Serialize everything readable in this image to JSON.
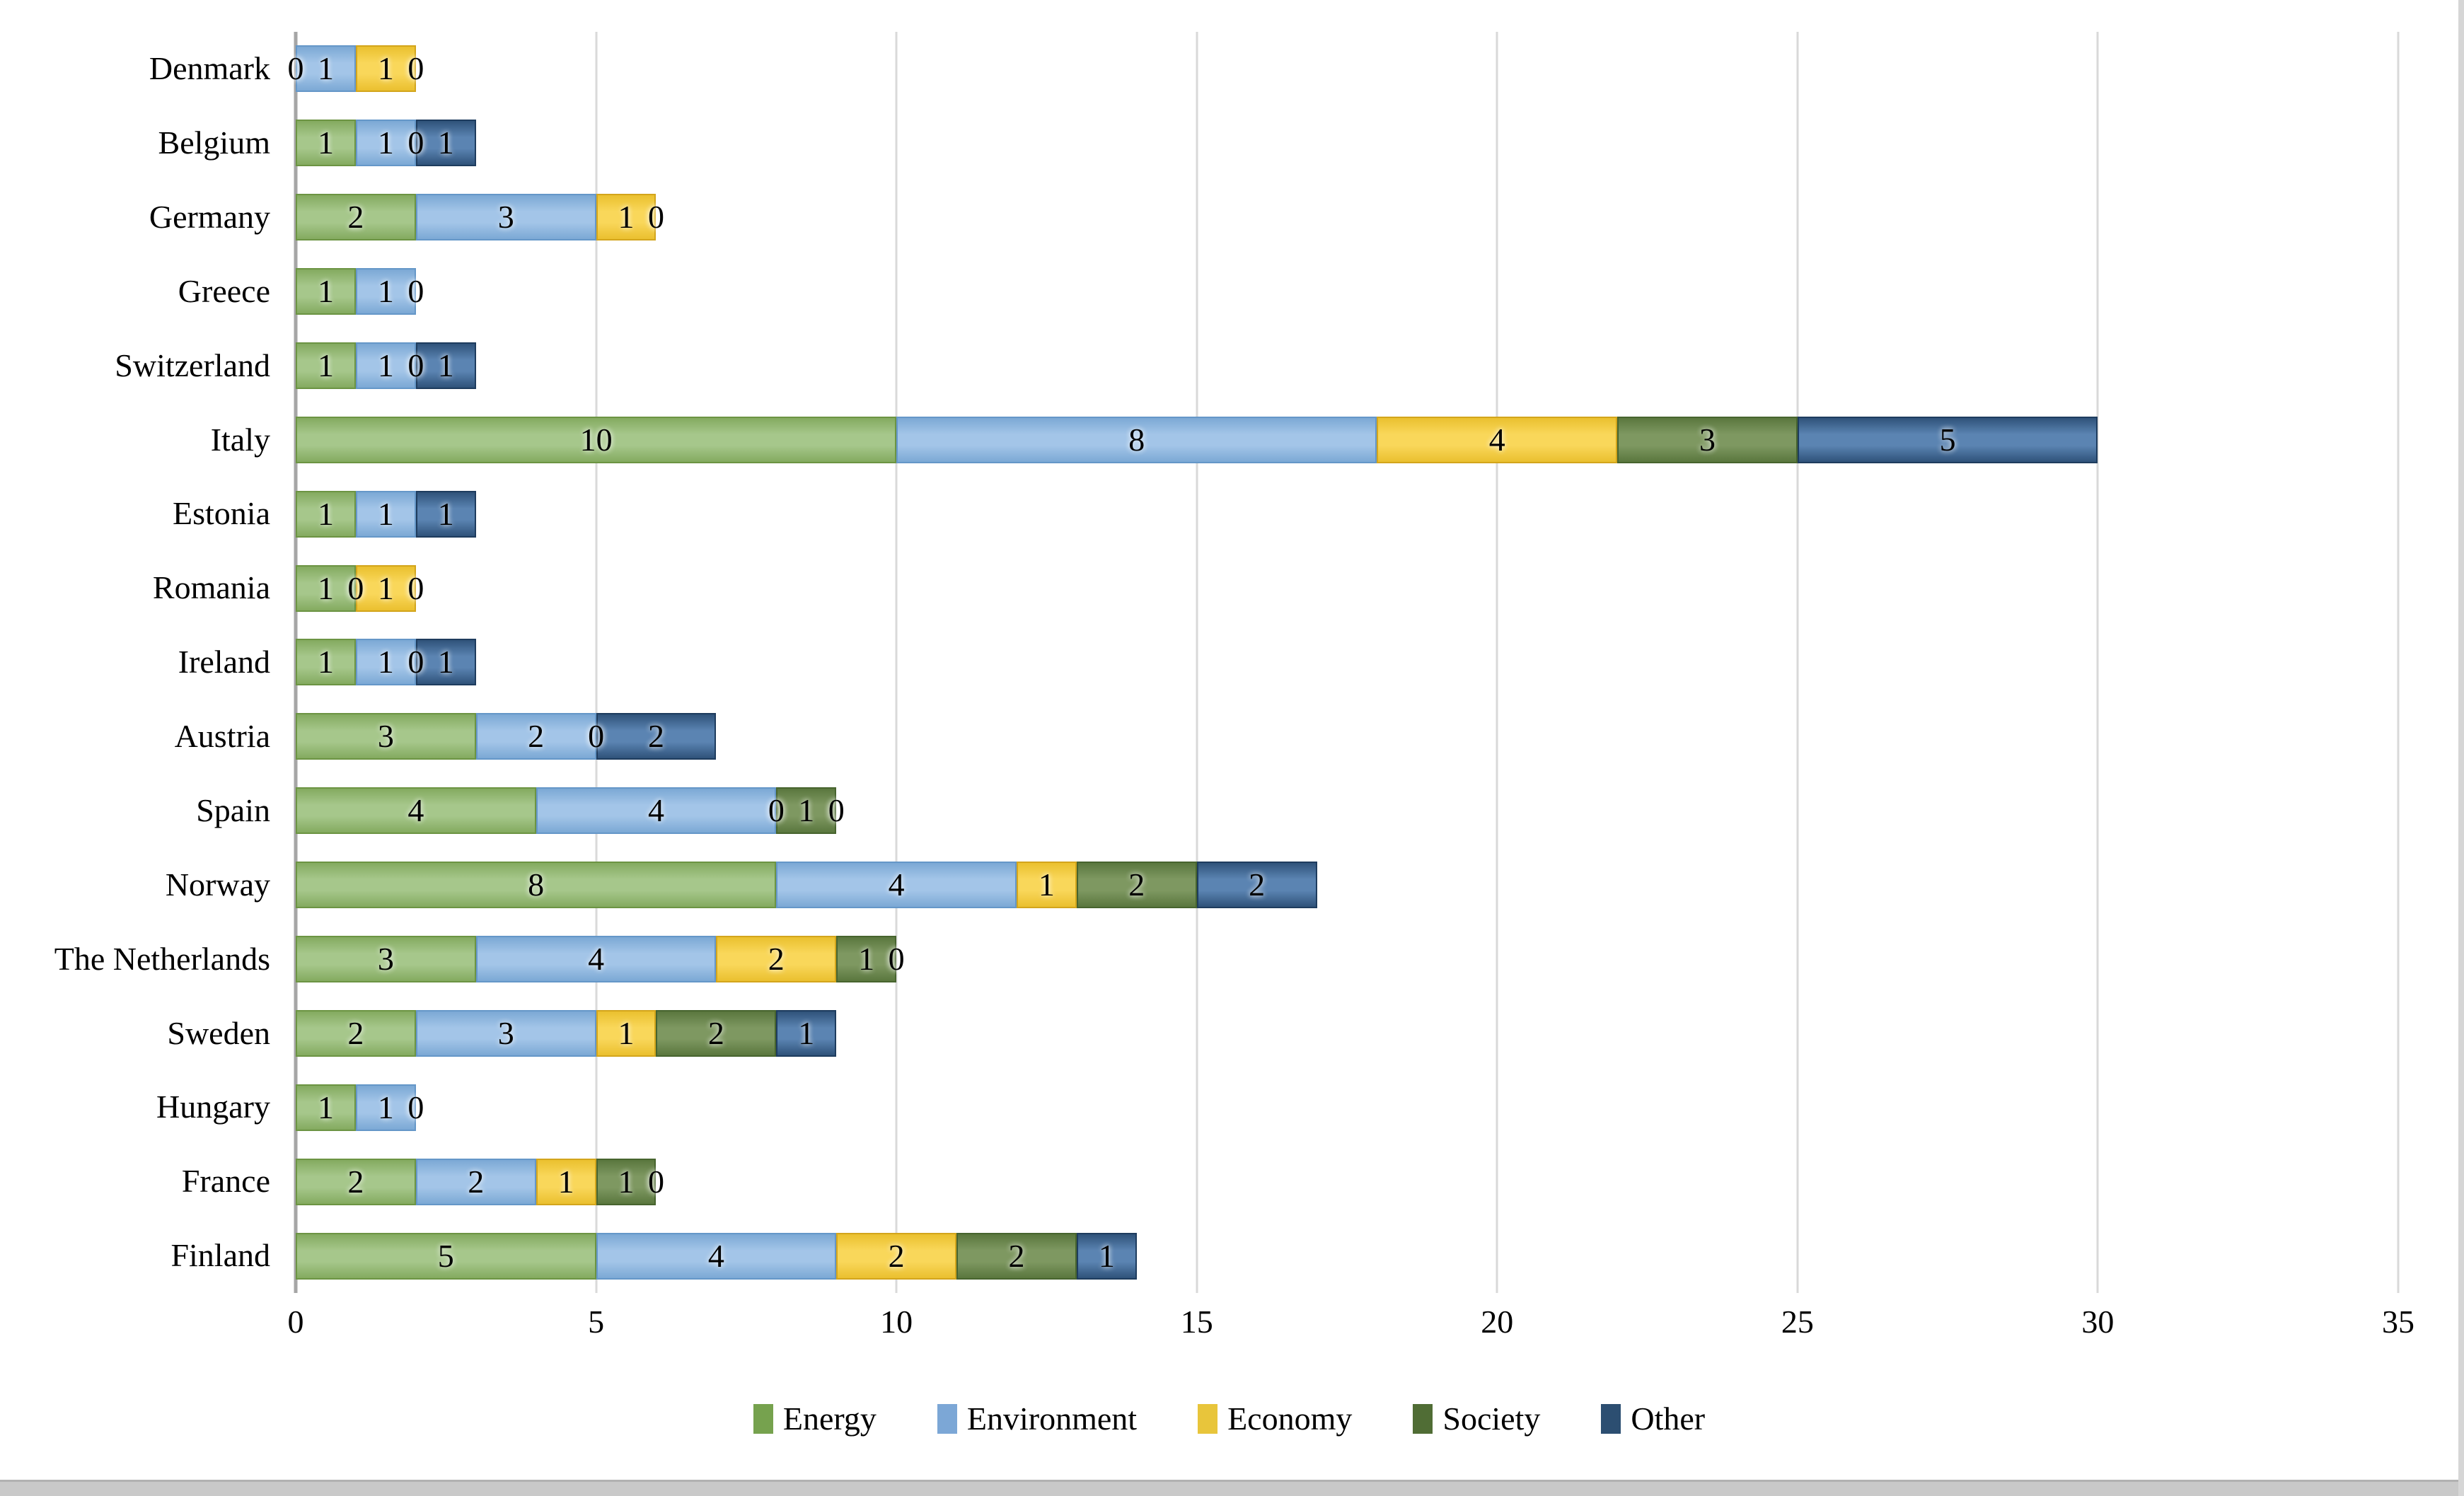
{
  "chart_data": {
    "type": "bar",
    "orientation": "horizontal",
    "stacked": true,
    "title": "",
    "xlabel": "",
    "ylabel": "",
    "categories": [
      "Denmark",
      "Belgium",
      "Germany",
      "Greece",
      "Switzerland",
      "Italy",
      "Estonia",
      "Romania",
      "Ireland",
      "Austria",
      "Spain",
      "Norway",
      "The Netherlands",
      "Sweden",
      "Hungary",
      "France",
      "Finland"
    ],
    "series": [
      {
        "name": "Energy",
        "legend_color": "#76A24E",
        "fill_light": "#A6C78B",
        "fill_dark": "#81A85C",
        "border": "#6C9443",
        "values": [
          0,
          1,
          2,
          1,
          1,
          10,
          1,
          1,
          1,
          3,
          4,
          8,
          3,
          2,
          1,
          2,
          5
        ]
      },
      {
        "name": "Environment",
        "legend_color": "#7CA7D6",
        "fill_light": "#A3C5E8",
        "fill_dark": "#78A6D3",
        "border": "#6597C8",
        "values": [
          1,
          1,
          3,
          1,
          1,
          8,
          1,
          0,
          1,
          2,
          4,
          4,
          4,
          3,
          1,
          2,
          4
        ]
      },
      {
        "name": "Economy",
        "legend_color": "#E8C53B",
        "fill_light": "#F9D75A",
        "fill_dark": "#E9BE2B",
        "border": "#D3A51C",
        "values": [
          1,
          0,
          1,
          0,
          0,
          4,
          0,
          1,
          0,
          0,
          0,
          1,
          2,
          1,
          0,
          1,
          2
        ]
      },
      {
        "name": "Society",
        "legend_color": "#506D35",
        "fill_light": "#7E9861",
        "fill_dark": "#57743B",
        "border": "#47642E",
        "values": [
          0,
          0,
          0,
          0,
          0,
          3,
          0,
          0,
          0,
          0,
          1,
          2,
          1,
          2,
          0,
          1,
          2
        ]
      },
      {
        "name": "Other",
        "legend_color": "#2C4E71",
        "fill_light": "#5B84B2",
        "fill_dark": "#2B4E75",
        "border": "#1E3C5E",
        "values": [
          0,
          1,
          0,
          0,
          1,
          5,
          1,
          0,
          1,
          2,
          0,
          2,
          0,
          1,
          0,
          0,
          1
        ]
      }
    ],
    "xlim": [
      0,
      35
    ],
    "xticks": [
      0,
      5,
      10,
      15,
      20,
      25,
      30,
      35
    ],
    "grid": true,
    "legend_position": "bottom",
    "visible_zero_labels": [
      [
        0,
        0
      ],
      [
        0,
        3
      ],
      [
        1,
        2
      ],
      [
        2,
        3
      ],
      [
        3,
        2
      ],
      [
        4,
        2
      ],
      [
        7,
        1
      ],
      [
        7,
        3
      ],
      [
        8,
        2
      ],
      [
        9,
        2
      ],
      [
        10,
        2
      ],
      [
        10,
        4
      ],
      [
        12,
        4
      ],
      [
        14,
        2
      ],
      [
        15,
        4
      ]
    ]
  },
  "colors": {
    "gridline": "#D9D9D9",
    "axis_line": "#A6A6A6",
    "text": "#000000",
    "bottom_bar": "#C9C9C9",
    "right_edge": "#D6D6D6"
  }
}
